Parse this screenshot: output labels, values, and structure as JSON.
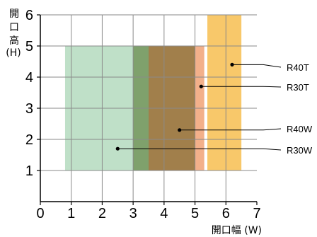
{
  "chart_data": {
    "type": "area",
    "title": "",
    "xlabel": "開口幅 (W)",
    "ylabel_chars": [
      "開",
      "口",
      "高",
      "(H)"
    ],
    "xlim": [
      0,
      7
    ],
    "ylim": [
      0,
      6
    ],
    "xticks": [
      "0",
      "1",
      "2",
      "3",
      "4",
      "5",
      "6",
      "7"
    ],
    "yticks": [
      "1",
      "2",
      "3",
      "4",
      "5",
      "6"
    ],
    "grid": true,
    "series": [
      {
        "name": "R30W",
        "x_range": [
          0.8,
          3.5
        ],
        "y_range": [
          1,
          5
        ],
        "color": "#bfe0c8",
        "label_point": [
          2.5,
          1.7
        ]
      },
      {
        "name": "R30T",
        "x_range": [
          3.5,
          5.3
        ],
        "y_range": [
          1,
          5
        ],
        "color": "#f3b08a",
        "label_point": [
          5.2,
          3.7
        ]
      },
      {
        "name": "R40W",
        "x_range": [
          3.0,
          5.0
        ],
        "y_range": [
          1,
          5
        ],
        "color": "#a9b88a",
        "label_point": [
          4.5,
          2.3
        ]
      },
      {
        "name": "R40T",
        "x_range": [
          5.4,
          6.5
        ],
        "y_range": [
          1,
          6
        ],
        "color": "#f8c86a",
        "label_point": [
          6.2,
          4.4
        ]
      }
    ]
  }
}
